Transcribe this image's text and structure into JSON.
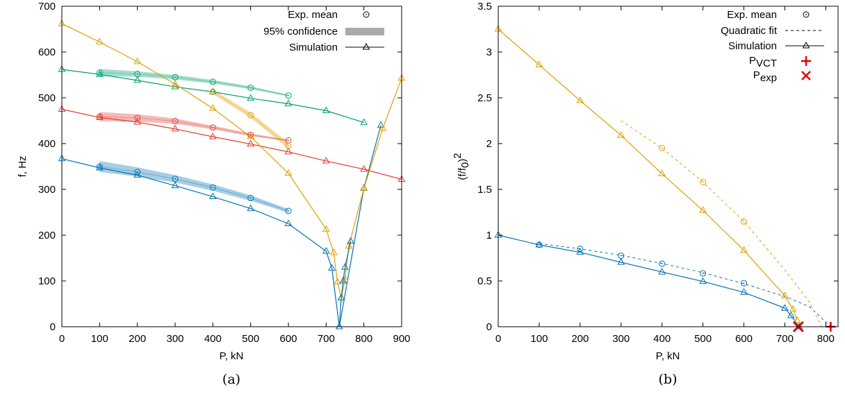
{
  "chart_data": [
    {
      "type": "line",
      "caption": "(a)",
      "xlabel": "P, kN",
      "ylabel": "f, Hz",
      "xlim": [
        0,
        900
      ],
      "ylim": [
        0,
        700
      ],
      "xticks": [
        0,
        100,
        200,
        300,
        400,
        500,
        600,
        700,
        800,
        900
      ],
      "yticks": [
        0,
        100,
        200,
        300,
        400,
        500,
        600,
        700
      ],
      "grid": false,
      "legend": {
        "placement": "top-right",
        "entries": [
          {
            "label": "Exp. mean",
            "style": "circle"
          },
          {
            "label": "95% confidence",
            "style": "band"
          },
          {
            "label": "Simulation",
            "style": "line-triangle"
          }
        ]
      },
      "colors": {
        "blue": "#0072b2",
        "red": "#e03a30",
        "green": "#009e73",
        "orange": "#e0a000",
        "gray": "#aaaaaa"
      },
      "series": [
        {
          "kind": "simulation",
          "color": "#0072b2",
          "x": [
            0,
            100,
            200,
            300,
            400,
            500,
            600,
            700,
            715,
            735,
            800,
            845
          ],
          "y": [
            367,
            347,
            331,
            308,
            284,
            258,
            225,
            165,
            128,
            0,
            303,
            440
          ]
        },
        {
          "kind": "simulation",
          "color": "#e03a30",
          "x": [
            0,
            100,
            200,
            300,
            400,
            500,
            600,
            700,
            800,
            900
          ],
          "y": [
            475,
            457,
            447,
            432,
            415,
            399,
            382,
            362,
            344,
            322
          ]
        },
        {
          "kind": "simulation",
          "color": "#009e73",
          "x": [
            0,
            100,
            200,
            300,
            400,
            500,
            600,
            700,
            800
          ],
          "y": [
            562,
            551,
            538,
            524,
            513,
            499,
            487,
            472,
            446
          ]
        },
        {
          "kind": "simulation",
          "color": "#e0a000",
          "x": [
            0,
            100,
            200,
            300,
            400,
            500,
            600,
            700,
            720,
            730,
            740,
            750,
            760,
            800,
            850,
            900
          ],
          "y": [
            662,
            622,
            579,
            530,
            477,
            415,
            335,
            213,
            162,
            98,
            63,
            103,
            176,
            302,
            433,
            543
          ]
        },
        {
          "kind": "simulation",
          "color": "#0072b2",
          "x": [
            735,
            740,
            745,
            750,
            765
          ],
          "y": [
            0,
            63,
            100,
            130,
            187
          ]
        },
        {
          "kind": "experiment",
          "color": "#0072b2",
          "x": [
            100,
            200,
            300,
            400,
            500,
            600
          ],
          "y": [
            350,
            338,
            323,
            304,
            281,
            253
          ],
          "band": [
            12,
            10,
            8,
            7,
            6,
            4
          ]
        },
        {
          "kind": "experiment",
          "color": "#e03a30",
          "x": [
            100,
            200,
            300,
            400,
            500,
            600
          ],
          "y": [
            459,
            456,
            449,
            435,
            419,
            407
          ],
          "band": [
            10,
            8,
            6,
            4,
            3,
            2
          ]
        },
        {
          "kind": "experiment",
          "color": "#009e73",
          "x": [
            100,
            200,
            300,
            400,
            500,
            600
          ],
          "y": [
            555,
            552,
            545,
            535,
            522,
            505
          ],
          "band": [
            8,
            6,
            5,
            4,
            3,
            2
          ]
        },
        {
          "kind": "experiment",
          "color": "#e0a000",
          "x": [
            400,
            500,
            600
          ],
          "y": [
            513,
            462,
            395
          ],
          "band": [
            5,
            6,
            7
          ]
        }
      ]
    },
    {
      "type": "line",
      "caption": "(b)",
      "xlabel": "P, kN",
      "ylabel_base": "(f/f",
      "ylabel_sub": "0",
      "ylabel_end": ")",
      "ylabel_sup": "2",
      "xlim": [
        0,
        830
      ],
      "ylim": [
        0,
        3.5
      ],
      "xticks": [
        0,
        100,
        200,
        300,
        400,
        500,
        600,
        700,
        800
      ],
      "yticks": [
        0,
        0.5,
        1,
        1.5,
        2,
        2.5,
        3,
        3.5
      ],
      "ytick_labels": [
        "0",
        "0.5",
        "1",
        "1.5",
        "2",
        "2.5",
        "3",
        "3.5"
      ],
      "grid": false,
      "legend": {
        "placement": "top-right",
        "entries": [
          {
            "label": "Exp. mean",
            "style": "circle"
          },
          {
            "label": "Quadratic fit",
            "style": "dashed"
          },
          {
            "label": "Simulation",
            "style": "line-triangle"
          },
          {
            "label": "P",
            "sub": "VCT",
            "style": "plus"
          },
          {
            "label": "P",
            "sub": "exp",
            "style": "cross"
          }
        ]
      },
      "colors": {
        "blue": "#0072b2",
        "orange": "#e0a000",
        "red": "#e00000"
      },
      "series": [
        {
          "kind": "simulation",
          "color": "#0072b2",
          "x": [
            0,
            100,
            200,
            300,
            400,
            500,
            600,
            700,
            715,
            735
          ],
          "y": [
            1.0,
            0.894,
            0.813,
            0.704,
            0.598,
            0.494,
            0.376,
            0.202,
            0.121,
            0.0
          ]
        },
        {
          "kind": "simulation",
          "color": "#e0a000",
          "x": [
            0,
            100,
            200,
            300,
            400,
            500,
            600,
            700,
            720,
            730
          ],
          "y": [
            3.25,
            2.86,
            2.47,
            2.09,
            1.67,
            1.27,
            0.835,
            0.338,
            0.191,
            0.07
          ]
        },
        {
          "kind": "experiment",
          "color": "#0072b2",
          "x": [
            100,
            200,
            300,
            400,
            500,
            600
          ],
          "y": [
            0.894,
            0.851,
            0.776,
            0.688,
            0.583,
            0.476
          ]
        },
        {
          "kind": "experiment",
          "color": "#e0a000",
          "x": [
            400,
            500,
            600
          ],
          "y": [
            1.95,
            1.58,
            1.15
          ]
        },
        {
          "kind": "fit",
          "color": "#0072b2",
          "x": [
            100,
            200,
            300,
            400,
            500,
            600,
            700,
            760,
            812
          ],
          "y": [
            0.91,
            0.85,
            0.78,
            0.69,
            0.59,
            0.47,
            0.33,
            0.22,
            0.0
          ]
        },
        {
          "kind": "fit",
          "color": "#e0a000",
          "x": [
            300,
            400,
            500,
            600,
            700,
            760,
            790
          ],
          "y": [
            2.25,
            1.95,
            1.58,
            1.15,
            0.62,
            0.27,
            0.0
          ]
        }
      ],
      "markers": [
        {
          "kind": "P_VCT",
          "x": 812,
          "y": 0
        },
        {
          "kind": "P_exp",
          "x": 733,
          "y": 0
        }
      ]
    }
  ]
}
